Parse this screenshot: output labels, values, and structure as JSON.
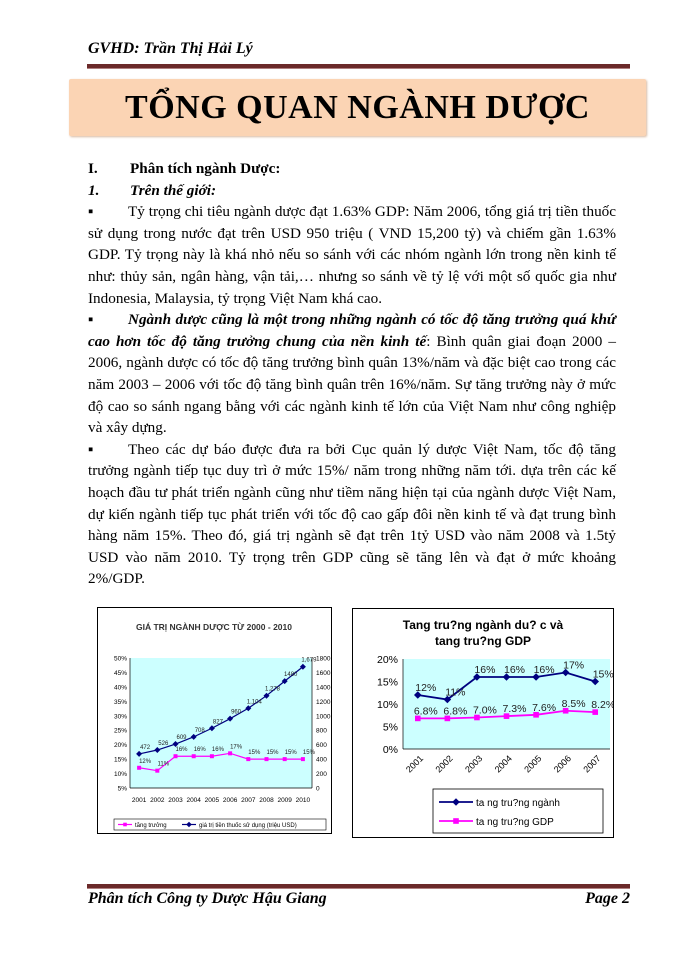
{
  "header": {
    "advisor": "GVHD: Trần Thị Hải Lý"
  },
  "title": "TỔNG QUAN NGÀNH DƯỢC",
  "section": {
    "number": "I.",
    "label": "Phân tích ngành Dược:"
  },
  "subsection": {
    "number": "1.",
    "label": "Trên thế giới:"
  },
  "paragraphs": [
    {
      "bullet": "▪",
      "bold": "",
      "text": "Tỷ trọng chi tiêu ngành dược đạt 1.63% GDP: Năm 2006, tổng giá trị tiền thuốc sử dụng trong nước đạt trên USD 950 triệu ( VND 15,200 tỷ) và chiếm gần 1.63% GDP. Tỷ trọng này là khá nhỏ nếu so sánh với các nhóm ngành lớn trong nền kinh tế như: thủy sản, ngân hàng, vận tải,… nhưng so sánh về tỷ lệ với một số quốc gia như Indonesia, Malaysia, tỷ trọng Việt Nam khá cao."
    },
    {
      "bullet": "▪",
      "bold": "Ngành dược cũng là một trong những ngành có tốc độ tăng trưởng quá khứ cao hơn tốc độ tăng trưởng chung của nền kinh tế",
      "text": ": Bình quân giai đoạn 2000 – 2006, ngành dược có tốc độ tăng trưởng bình quân 13%/năm và đặc biệt cao trong các năm 2003 – 2006 với tốc độ tăng bình quân trên 16%/năm. Sự tăng trưởng này ở mức độ cao so sánh ngang bằng với các ngành kinh tế lớn của Việt Nam như công nghiệp và xây dựng."
    },
    {
      "bullet": "▪",
      "bold": "",
      "text": "Theo các dự báo được đưa ra bởi Cục quản lý dược Việt Nam, tốc độ tăng trưởng ngành tiếp tục duy trì ở mức 15%/ năm trong những năm tới. dựa trên các kế hoạch đầu tư phát triển ngành cũng như tiềm năng hiện tại của ngành dược Việt Nam, dự kiến ngành tiếp tục phát triển với tốc độ cao gấp đôi nền kinh tế và đạt trung bình hàng năm 15%. Theo đó, giá trị ngành sẽ đạt trên 1tỷ USD vào năm 2008 và 1.5tỷ USD vào năm 2010. Tỷ trọng trên GDP cũng sẽ tăng lên và đạt ở mức khoảng 2%/GDP."
    }
  ],
  "footer": {
    "left": "Phân  tích Công ty Dược Hậu Giang",
    "right": "Page 2"
  },
  "chart_data": [
    {
      "type": "line",
      "title": "GIÁ TRỊ NGÀNH DƯỢC TỪ 2000 - 2010",
      "categories": [
        "2001",
        "2002",
        "2003",
        "2004",
        "2005",
        "2006",
        "2007",
        "2008",
        "2009",
        "2010"
      ],
      "y_left": {
        "range": [
          5,
          50
        ],
        "ticks": [
          "5%",
          "10%",
          "15%",
          "20%",
          "25%",
          "30%",
          "35%",
          "40%",
          "45%",
          "50%"
        ]
      },
      "y_right": {
        "range": [
          0,
          1800
        ],
        "ticks": [
          "0",
          "200",
          "400",
          "600",
          "800",
          "1000",
          "1200",
          "1400",
          "1600",
          "1800"
        ]
      },
      "series": [
        {
          "name": "tăng trưởng",
          "axis": "left",
          "color": "#ff00ff",
          "marker": "square",
          "values": [
            12,
            11,
            16,
            16,
            16,
            17,
            15,
            15,
            15,
            15
          ],
          "labels": [
            "12%",
            "11%",
            "16%",
            "16%",
            "16%",
            "17%",
            "15%",
            "15%",
            "15%",
            "15%"
          ]
        },
        {
          "name": "giá trị tiền thuốc sử dụng (triệu USD)",
          "axis": "right",
          "color": "#000080",
          "marker": "diamond",
          "values": [
            472,
            526,
            609,
            708,
            827,
            960,
            1104,
            1278,
            1480,
            1679
          ],
          "labels": [
            "472",
            "526",
            "609",
            "708",
            "827",
            "960",
            "1,104",
            "1,278",
            "1480",
            "1,679"
          ]
        }
      ],
      "plot_bg": "#ccffff",
      "legend": "bottom"
    },
    {
      "type": "line",
      "title": [
        "Tang tru?ng ngành du? c và",
        "tang tru?ng GDP"
      ],
      "categories": [
        "2001",
        "2002",
        "2003",
        "2004",
        "2005",
        "2006",
        "2007"
      ],
      "y": {
        "range": [
          0,
          20
        ],
        "ticks": [
          "0%",
          "5%",
          "10%",
          "15%",
          "20%"
        ]
      },
      "series": [
        {
          "name": "ta ng tru?ng ngành",
          "color": "#000080",
          "marker": "diamond",
          "values": [
            12,
            11,
            16,
            16,
            16,
            17,
            15
          ],
          "labels": [
            "12%",
            "11%",
            "16%",
            "16%",
            "16%",
            "17%",
            "15%"
          ]
        },
        {
          "name": "ta ng tru?ng GDP",
          "color": "#ff00ff",
          "marker": "square",
          "values": [
            6.8,
            6.8,
            7.0,
            7.3,
            7.6,
            8.5,
            8.2
          ],
          "labels": [
            "6.8%",
            "6.8%",
            "7.0%",
            "7.3%",
            "7.6%",
            "8.5%",
            "8.2%"
          ]
        }
      ],
      "plot_bg": "#ccffff",
      "legend": "bottom"
    }
  ]
}
